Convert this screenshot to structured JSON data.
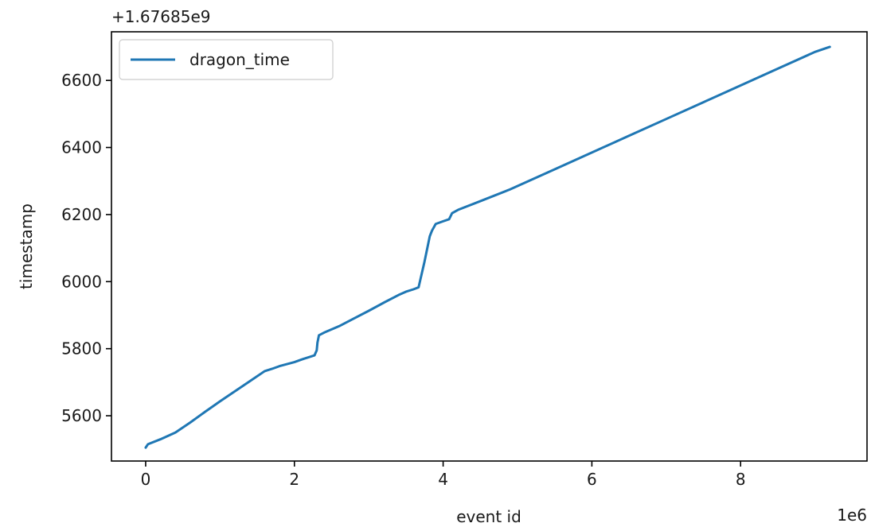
{
  "chart_data": {
    "type": "line",
    "title": "",
    "xlabel": "event id",
    "ylabel": "timestamp",
    "x_offset_label": "1e6",
    "y_offset_label": "+1.67685e9",
    "xlim": [
      -0.46,
      9.7
    ],
    "ylim": [
      5465,
      6745
    ],
    "x_ticks": [
      0,
      2,
      4,
      6,
      8
    ],
    "x_tick_labels": [
      "0",
      "2",
      "4",
      "6",
      "8"
    ],
    "y_ticks": [
      5600,
      5800,
      6000,
      6200,
      6400,
      6600
    ],
    "y_tick_labels": [
      "5600",
      "5800",
      "6000",
      "6200",
      "6400",
      "6600"
    ],
    "grid": false,
    "legend": "upper left",
    "series": [
      {
        "name": "dragon_time",
        "color": "#1f77b4",
        "x": [
          0,
          0.03,
          0.2,
          0.4,
          0.6,
          0.8,
          1.0,
          1.2,
          1.4,
          1.6,
          1.7,
          1.8,
          2.0,
          2.1,
          2.2,
          2.27,
          2.3,
          2.31,
          2.33,
          2.4,
          2.6,
          2.8,
          3.0,
          3.2,
          3.4,
          3.5,
          3.6,
          3.67,
          3.75,
          3.82,
          3.85,
          3.9,
          4.0,
          4.08,
          4.12,
          4.2,
          4.5,
          4.9,
          5.5,
          6.0,
          6.5,
          7.0,
          7.5,
          8.0,
          8.5,
          9.0,
          9.2
        ],
        "y": [
          5505,
          5515,
          5530,
          5550,
          5580,
          5612,
          5643,
          5673,
          5703,
          5733,
          5740,
          5748,
          5760,
          5768,
          5775,
          5780,
          5795,
          5818,
          5840,
          5848,
          5867,
          5890,
          5913,
          5937,
          5960,
          5970,
          5977,
          5983,
          6060,
          6135,
          6152,
          6172,
          6180,
          6186,
          6204,
          6214,
          6240,
          6275,
          6335,
          6385,
          6435,
          6485,
          6535,
          6585,
          6635,
          6685,
          6700
        ]
      }
    ]
  }
}
